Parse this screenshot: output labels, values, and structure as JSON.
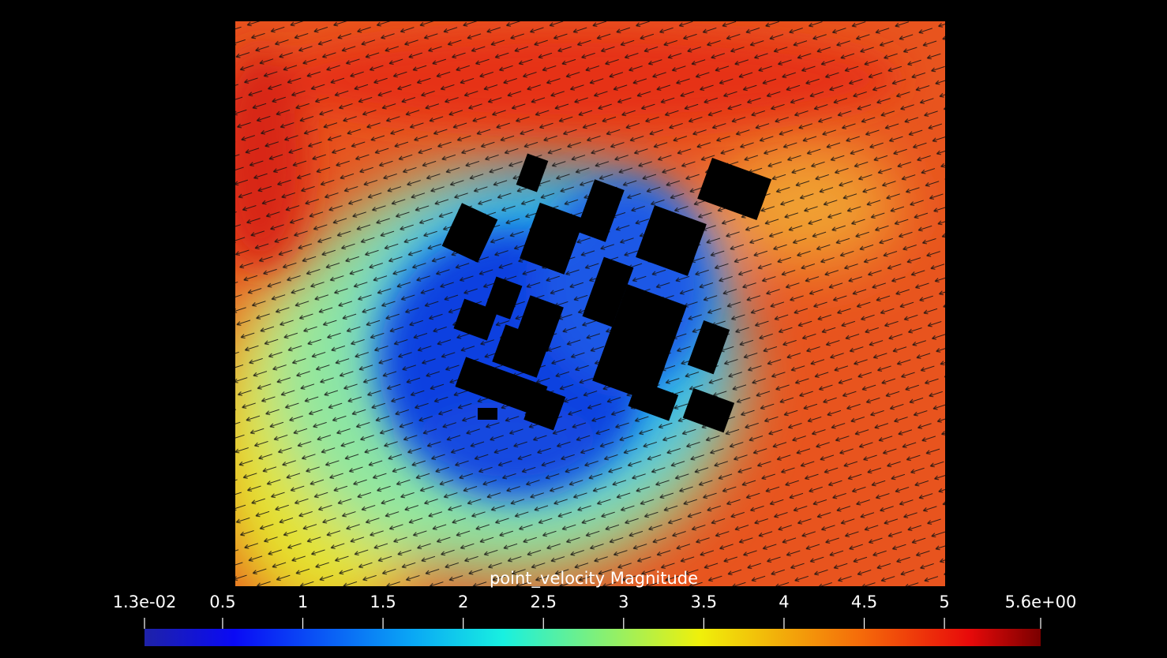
{
  "colorbar": {
    "title": "point_velocity Magnitude",
    "range": [
      0.013,
      5.6
    ],
    "ticks": [
      {
        "value": 0.013,
        "label": "1.3e-02"
      },
      0.5,
      1,
      1.5,
      2,
      2.5,
      3,
      3.5,
      4,
      4.5,
      5,
      {
        "value": 5.6,
        "label": "5.6e+00"
      }
    ]
  }
}
